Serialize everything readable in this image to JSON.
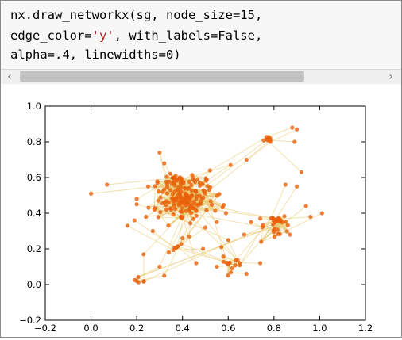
{
  "code": {
    "line1": "nx.draw_networkx(sg, node_size=15,",
    "line2_pre": "edge_color=",
    "line2_str": "'y'",
    "line2_post": ", with_labels=False,",
    "line3": "alpha=.4, linewidths=0)"
  },
  "scrollbar": {
    "left_arrow": "‹",
    "right_arrow": "›"
  },
  "colors": {
    "node": "#e8600a",
    "edge": "#e8c870",
    "code_bg": "#f7f7f7",
    "string": "#ba2121"
  },
  "chart_data": {
    "type": "scatter",
    "description_of_marks": "network graph: orange nodes connected by pale yellow edges",
    "xlim": [
      -0.2,
      1.2
    ],
    "ylim": [
      -0.2,
      1.0
    ],
    "x_ticks": [
      "−0.2",
      "0.0",
      "0.2",
      "0.4",
      "0.6",
      "0.8",
      "1.0",
      "1.2"
    ],
    "y_ticks": [
      "−0.2",
      "0.0",
      "0.2",
      "0.4",
      "0.6",
      "0.8",
      "1.0"
    ],
    "clusters": [
      {
        "cx": 0.41,
        "cy": 0.48,
        "spread": 0.06,
        "count": 140
      },
      {
        "cx": 0.38,
        "cy": 0.58,
        "spread": 0.035,
        "count": 25
      },
      {
        "cx": 0.47,
        "cy": 0.58,
        "spread": 0.03,
        "count": 12
      },
      {
        "cx": 0.81,
        "cy": 0.33,
        "spread": 0.035,
        "count": 30
      },
      {
        "cx": 0.62,
        "cy": 0.12,
        "spread": 0.025,
        "count": 14
      },
      {
        "cx": 0.77,
        "cy": 0.81,
        "spread": 0.01,
        "count": 8
      },
      {
        "cx": 0.22,
        "cy": 0.02,
        "spread": 0.012,
        "count": 6
      },
      {
        "cx": 0.38,
        "cy": 0.21,
        "spread": 0.012,
        "count": 6
      }
    ],
    "satellites": [
      [
        0.0,
        0.51
      ],
      [
        0.07,
        0.56
      ],
      [
        0.2,
        0.48
      ],
      [
        0.16,
        0.33
      ],
      [
        0.19,
        0.36
      ],
      [
        0.24,
        0.38
      ],
      [
        0.27,
        0.3
      ],
      [
        0.23,
        0.17
      ],
      [
        0.2,
        0.45
      ],
      [
        0.34,
        0.46
      ],
      [
        0.34,
        0.18
      ],
      [
        0.43,
        0.27
      ],
      [
        0.5,
        0.32
      ],
      [
        0.55,
        0.35
      ],
      [
        0.59,
        0.4
      ],
      [
        0.3,
        0.74
      ],
      [
        0.32,
        0.68
      ],
      [
        0.3,
        0.1
      ],
      [
        0.32,
        0.05
      ],
      [
        0.4,
        0.26
      ],
      [
        0.88,
        0.88
      ],
      [
        0.9,
        0.87
      ],
      [
        0.89,
        0.8
      ],
      [
        0.92,
        0.63
      ],
      [
        0.9,
        0.55
      ],
      [
        0.85,
        0.56
      ],
      [
        0.94,
        0.44
      ],
      [
        1.01,
        0.4
      ],
      [
        0.96,
        0.38
      ],
      [
        0.7,
        0.35
      ],
      [
        0.74,
        0.37
      ],
      [
        0.87,
        0.28
      ],
      [
        0.6,
        0.25
      ],
      [
        0.67,
        0.28
      ],
      [
        0.55,
        0.1
      ],
      [
        0.46,
        0.12
      ],
      [
        0.74,
        0.12
      ],
      [
        0.68,
        0.06
      ],
      [
        0.49,
        0.2
      ],
      [
        0.57,
        0.21
      ],
      [
        0.61,
        0.67
      ],
      [
        0.68,
        0.7
      ],
      [
        0.52,
        0.64
      ],
      [
        0.29,
        0.57
      ],
      [
        0.25,
        0.55
      ]
    ],
    "hub_links": [
      [
        0,
        1
      ],
      [
        0,
        2
      ],
      [
        0,
        3
      ],
      [
        0,
        4
      ],
      [
        0,
        7
      ],
      [
        3,
        4
      ],
      [
        3,
        6
      ],
      [
        0,
        5
      ],
      [
        4,
        7
      ]
    ]
  }
}
